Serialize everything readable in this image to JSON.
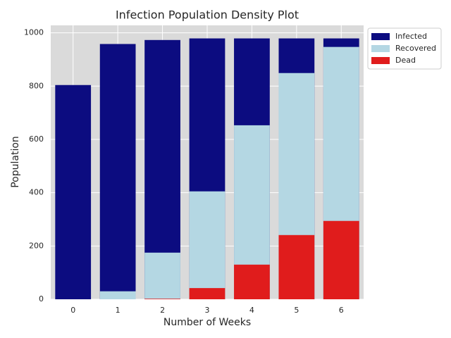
{
  "chart_data": {
    "type": "bar",
    "title": "Infection Population Density Plot",
    "x_label": "Number of Weeks",
    "y_label": "Population",
    "categories": [
      "0",
      "1",
      "2",
      "3",
      "4",
      "5",
      "6"
    ],
    "series": [
      {
        "name": "Infected",
        "color": "#0c0c80",
        "values": [
          804,
          958,
          973,
          979,
          979,
          979,
          979
        ]
      },
      {
        "name": "Recovered",
        "color": "#b4d7e3",
        "values": [
          0,
          30,
          175,
          405,
          653,
          849,
          947
        ]
      },
      {
        "name": "Dead",
        "color": "#e01c1c",
        "values": [
          0,
          0,
          2,
          42,
          130,
          241,
          294
        ]
      }
    ],
    "ylim": [
      0,
      1028
    ],
    "yticks": [
      0,
      200,
      400,
      600,
      800,
      1000
    ],
    "grid": true,
    "legend": "outside upper right"
  }
}
